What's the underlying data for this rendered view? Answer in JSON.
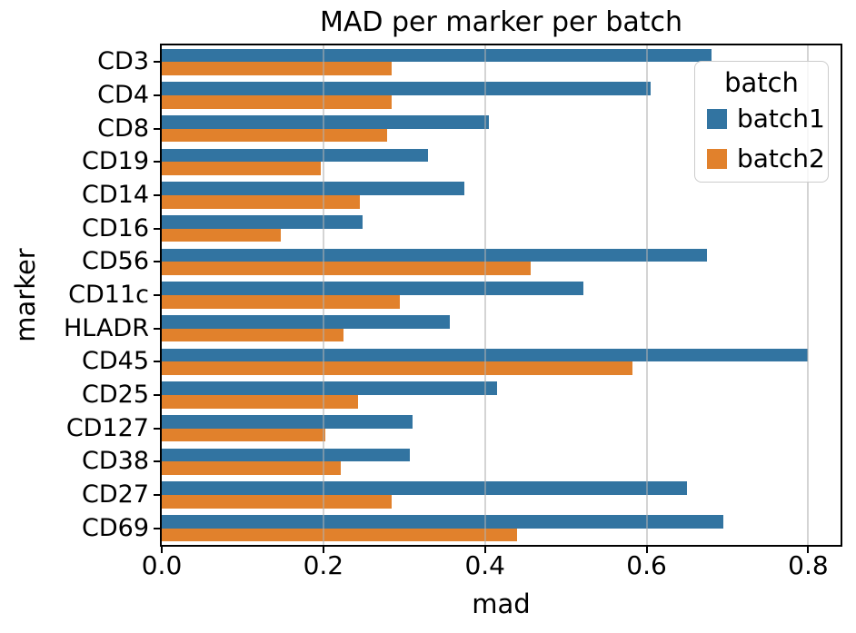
{
  "figure": {
    "title": "MAD per marker per batch",
    "xlabel": "mad",
    "ylabel": "marker",
    "background_color": "#ffffff",
    "spine_color": "#000000",
    "grid_color": "#b0b0b0"
  },
  "legend": {
    "title": "batch",
    "entries": [
      {
        "label": "batch1",
        "color": "#3274A1"
      },
      {
        "label": "batch2",
        "color": "#E1812C"
      }
    ]
  },
  "chart_data": {
    "type": "bar",
    "orientation": "horizontal",
    "title": "MAD per marker per batch",
    "xlabel": "mad",
    "ylabel": "marker",
    "categories": [
      "CD3",
      "CD4",
      "CD8",
      "CD19",
      "CD14",
      "CD16",
      "CD56",
      "CD11c",
      "HLADR",
      "CD45",
      "CD25",
      "CD127",
      "CD38",
      "CD27",
      "CD69"
    ],
    "series": [
      {
        "name": "batch1",
        "color": "#3274A1",
        "values": [
          0.68,
          0.605,
          0.405,
          0.33,
          0.375,
          0.248,
          0.675,
          0.522,
          0.356,
          0.8,
          0.415,
          0.31,
          0.307,
          0.65,
          0.695
        ]
      },
      {
        "name": "batch2",
        "color": "#E1812C",
        "values": [
          0.285,
          0.285,
          0.279,
          0.197,
          0.245,
          0.147,
          0.456,
          0.295,
          0.225,
          0.582,
          0.243,
          0.202,
          0.221,
          0.284,
          0.44
        ]
      }
    ],
    "xlim": [
      0,
      0.84
    ],
    "xticks": [
      "0.0",
      "0.2",
      "0.4",
      "0.6",
      "0.8"
    ],
    "grid": true,
    "grid_axis": "x",
    "legend_position": "upper right"
  }
}
